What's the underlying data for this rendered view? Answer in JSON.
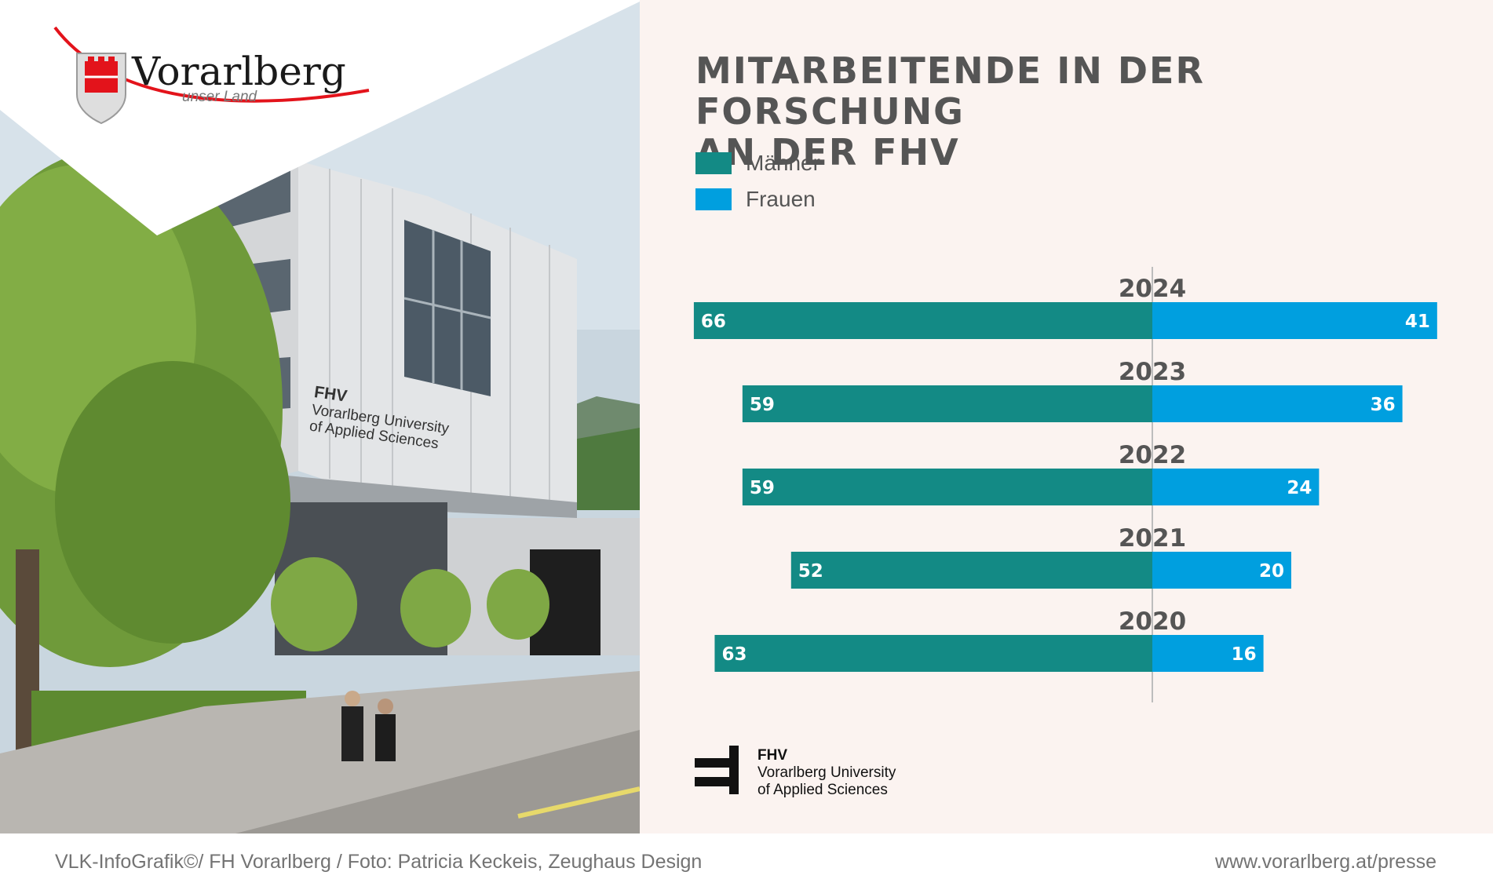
{
  "brand": {
    "name": "Vorarlberg",
    "tagline": "unser Land"
  },
  "photo": {
    "sign_title": "FHV",
    "sign_line1": "Vorarlberg University",
    "sign_line2": "of Applied Sciences"
  },
  "chart": {
    "title_line1": "MITARBEITENDE IN DER FORSCHUNG",
    "title_line2": "AN DER FHV"
  },
  "colors": {
    "maenner": "#138a85",
    "frauen": "#009fdf",
    "title": "#555555",
    "panel_bg": "#fbf3f0"
  },
  "chart_data": {
    "type": "bar",
    "orientation": "horizontal-diverging",
    "categories": [
      "2024",
      "2023",
      "2022",
      "2021",
      "2020"
    ],
    "series": [
      {
        "name": "Männer",
        "values": [
          66,
          59,
          59,
          52,
          63
        ]
      },
      {
        "name": "Frauen",
        "values": [
          41,
          36,
          24,
          20,
          16
        ]
      }
    ],
    "title": "MITARBEITENDE IN DER FORSCHUNG AN DER FHV",
    "legend_position": "top-left",
    "grid": false,
    "data_labels": true
  },
  "fhv_logo": {
    "line1": "FHV",
    "line2": "Vorarlberg University",
    "line3": "of Applied Sciences"
  },
  "footer": {
    "credit": "VLK-InfoGrafik©/ FH Vorarlberg / Foto: Patricia Keckeis, Zeughaus Design",
    "url": "www.vorarlberg.at/presse"
  }
}
